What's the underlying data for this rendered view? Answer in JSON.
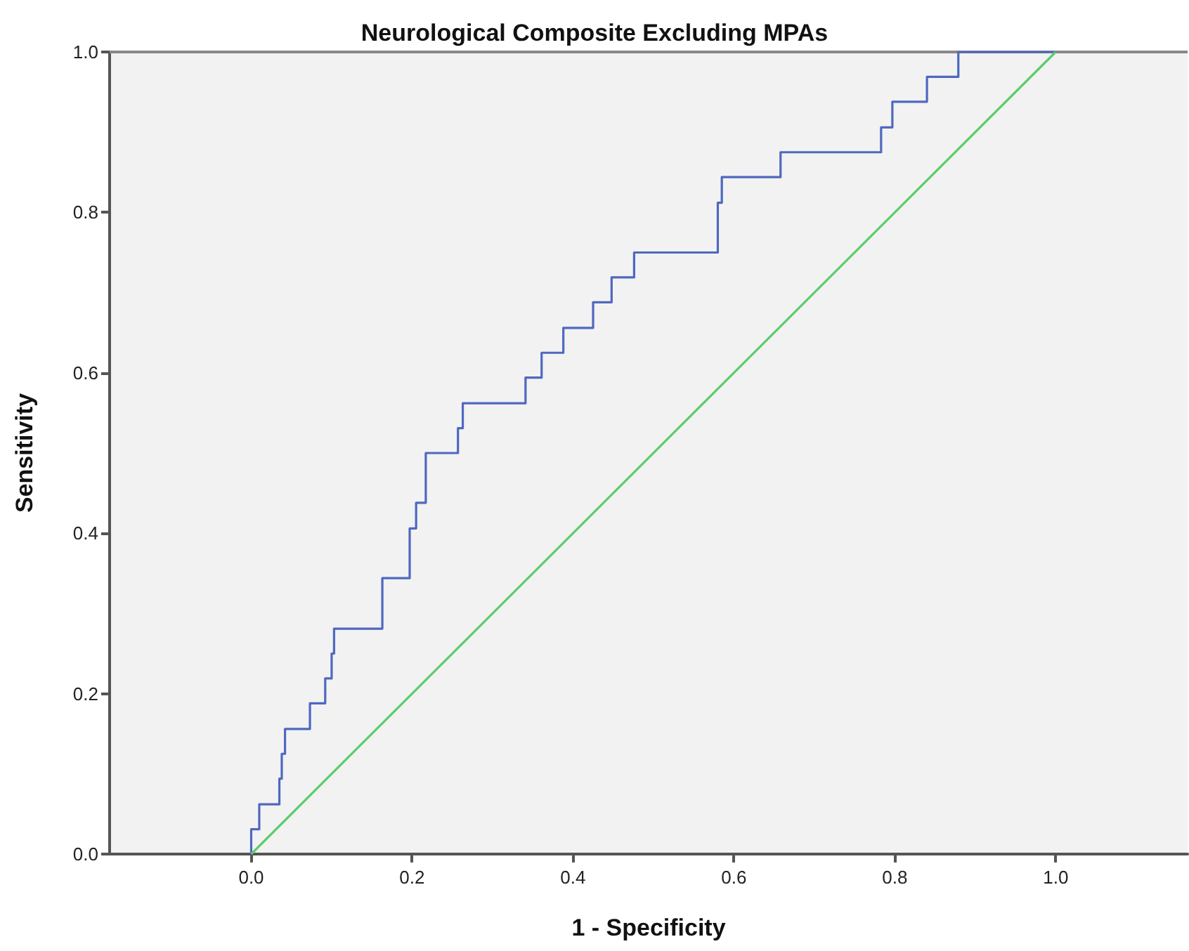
{
  "chart_data": {
    "type": "step",
    "title": "Neurological Composite Excluding MPAs",
    "xlabel": "1 - Specificity",
    "ylabel": "Sensitivity",
    "series": [
      {
        "color": "#4f68c0",
        "x": [
          0,
          0,
          0.01,
          0.035,
          0.038,
          0.042,
          0.073,
          0.092,
          0.1,
          0.103,
          0.163,
          0.197,
          0.205,
          0.217,
          0.257,
          0.263,
          0.341,
          0.361,
          0.388,
          0.425,
          0.448,
          0.476,
          0.58,
          0.585,
          0.658,
          0.783,
          0.797,
          0.84,
          0.879,
          1.0
        ],
        "values": [
          0,
          0.031,
          0.062,
          0.094,
          0.125,
          0.156,
          0.188,
          0.219,
          0.25,
          0.281,
          0.344,
          0.406,
          0.438,
          0.5,
          0.531,
          0.562,
          0.594,
          0.625,
          0.656,
          0.688,
          0.719,
          0.75,
          0.812,
          0.844,
          0.875,
          0.906,
          0.938,
          0.969,
          1.0,
          1.0
        ]
      },
      {
        "type": "line",
        "color": "#5ccc6c",
        "x": [
          0,
          1
        ],
        "values": [
          0,
          1
        ]
      }
    ],
    "xlim": [
      -0.176,
      1.164
    ],
    "ylim": [
      0,
      1
    ],
    "xticks": [
      {
        "value": 0,
        "label": "0.0"
      },
      {
        "value": 0.2,
        "label": "0.2"
      },
      {
        "value": 0.4,
        "label": "0.4"
      },
      {
        "value": 0.6,
        "label": "0.6"
      },
      {
        "value": 0.8,
        "label": "0.8"
      },
      {
        "value": 1,
        "label": "1.0"
      }
    ],
    "yticks": [
      {
        "value": 0,
        "label": "0.0"
      },
      {
        "value": 0.2,
        "label": "0.2"
      },
      {
        "value": 0.4,
        "label": "0.4"
      },
      {
        "value": 0.6,
        "label": "0.6"
      },
      {
        "value": 0.8,
        "label": "0.8"
      },
      {
        "value": 1,
        "label": "1.0"
      }
    ],
    "grid": false,
    "marker": "none",
    "line_style": "solid"
  }
}
